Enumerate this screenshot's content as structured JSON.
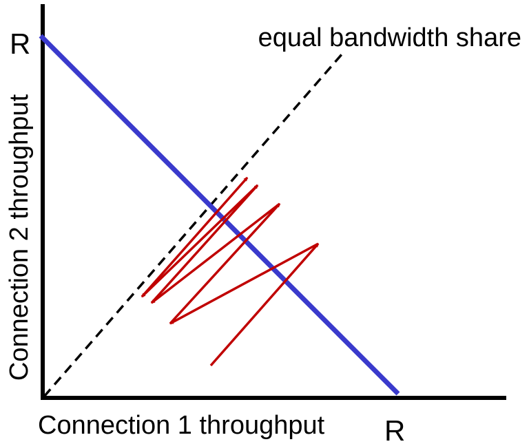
{
  "diagram": {
    "line_label": "equal bandwidth share",
    "x_axis_label": "Connection 1 throughput",
    "y_axis_label": "Connection 2 throughput",
    "x_max_label": "R",
    "y_max_label": "R"
  },
  "colors": {
    "axes": "#000000",
    "capacity_line": "#3a3acc",
    "fairness_line": "#000000",
    "trajectory": "#c00000",
    "background": "#ffffff"
  }
}
